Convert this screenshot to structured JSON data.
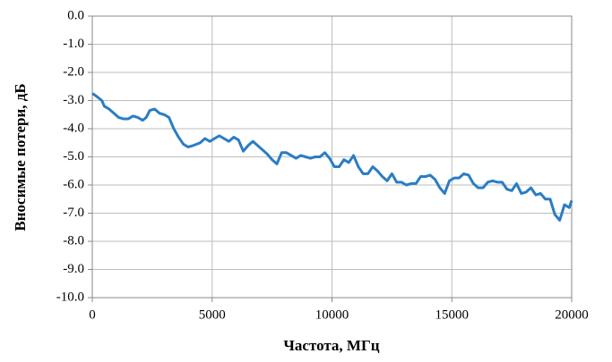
{
  "chart_data": {
    "type": "line",
    "x_label": "Частота, МГц",
    "y_label": "Вносимые потери, дБ",
    "x": [
      0,
      100,
      250,
      400,
      500,
      700,
      900,
      1100,
      1300,
      1500,
      1700,
      1900,
      2100,
      2250,
      2400,
      2600,
      2800,
      3000,
      3200,
      3400,
      3600,
      3800,
      4000,
      4200,
      4500,
      4700,
      4900,
      5100,
      5300,
      5500,
      5700,
      5900,
      6100,
      6300,
      6500,
      6700,
      6900,
      7100,
      7300,
      7500,
      7700,
      7900,
      8100,
      8300,
      8500,
      8700,
      8900,
      9100,
      9300,
      9500,
      9700,
      9900,
      10100,
      10300,
      10500,
      10700,
      10900,
      11100,
      11300,
      11500,
      11700,
      11900,
      12100,
      12300,
      12500,
      12700,
      12900,
      13100,
      13300,
      13500,
      13700,
      13900,
      14100,
      14300,
      14500,
      14700,
      14900,
      15100,
      15300,
      15500,
      15700,
      15900,
      16100,
      16300,
      16500,
      16700,
      16900,
      17100,
      17300,
      17500,
      17700,
      17900,
      18100,
      18300,
      18500,
      18700,
      18900,
      19100,
      19300,
      19500,
      19700,
      19900,
      20000
    ],
    "series": [
      {
        "name": "Вносимые потери",
        "color": "#2a7dc4",
        "values": [
          -2.75,
          -2.8,
          -2.9,
          -3.0,
          -3.2,
          -3.3,
          -3.45,
          -3.6,
          -3.65,
          -3.65,
          -3.55,
          -3.6,
          -3.7,
          -3.6,
          -3.35,
          -3.3,
          -3.45,
          -3.5,
          -3.6,
          -4.0,
          -4.3,
          -4.55,
          -4.65,
          -4.6,
          -4.5,
          -4.35,
          -4.45,
          -4.35,
          -4.25,
          -4.35,
          -4.45,
          -4.3,
          -4.4,
          -4.8,
          -4.6,
          -4.45,
          -4.6,
          -4.75,
          -4.9,
          -5.1,
          -5.25,
          -4.85,
          -4.85,
          -4.95,
          -5.05,
          -4.95,
          -5.0,
          -5.05,
          -5.0,
          -5.0,
          -4.85,
          -5.05,
          -5.35,
          -5.35,
          -5.1,
          -5.2,
          -4.95,
          -5.35,
          -5.6,
          -5.6,
          -5.35,
          -5.5,
          -5.7,
          -5.85,
          -5.6,
          -5.9,
          -5.9,
          -6.0,
          -5.95,
          -5.95,
          -5.7,
          -5.7,
          -5.65,
          -5.8,
          -6.1,
          -6.3,
          -5.85,
          -5.75,
          -5.75,
          -5.6,
          -5.65,
          -5.95,
          -6.1,
          -6.1,
          -5.9,
          -5.85,
          -5.9,
          -5.9,
          -6.15,
          -6.2,
          -5.95,
          -6.3,
          -6.25,
          -6.1,
          -6.35,
          -6.3,
          -6.5,
          -6.5,
          -7.05,
          -7.25,
          -6.7,
          -6.8,
          -6.55
        ]
      }
    ],
    "xlim": [
      0,
      20000
    ],
    "xticks": [
      0,
      5000,
      10000,
      15000,
      20000
    ],
    "ylim": [
      -10,
      0
    ],
    "yticks": [
      {
        "value": 0,
        "label": "0.0"
      },
      {
        "value": -1,
        "label": "-1.0"
      },
      {
        "value": -2,
        "label": "-2.0"
      },
      {
        "value": -3,
        "label": "-3.0"
      },
      {
        "value": -4,
        "label": "-4.0"
      },
      {
        "value": -5,
        "label": "-5.0"
      },
      {
        "value": -6,
        "label": "-6.0"
      },
      {
        "value": -7,
        "label": "-7.0"
      },
      {
        "value": -8,
        "label": "-8.0"
      },
      {
        "value": -9,
        "label": "-9.0"
      },
      {
        "value": -10,
        "label": "-10.0"
      }
    ],
    "grid": true
  }
}
